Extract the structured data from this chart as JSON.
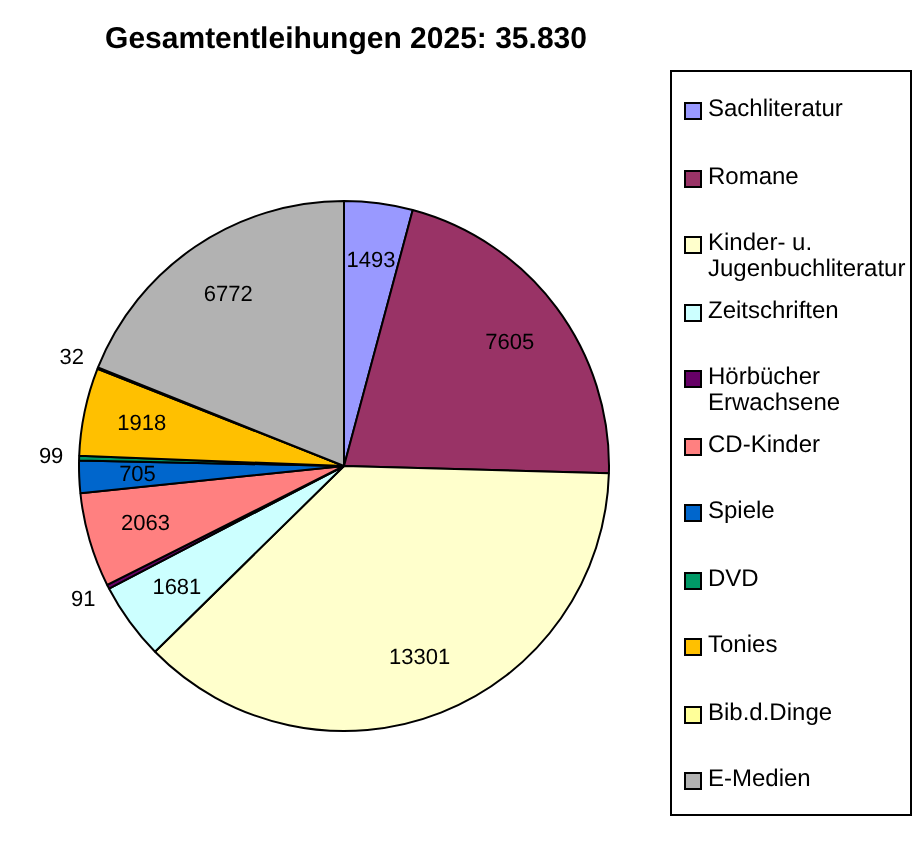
{
  "chart_data": {
    "type": "pie",
    "title": "Gesamtentleihungen 2025: 35.830",
    "categories": [
      "Sachliteratur",
      "Romane",
      "Kinder- u. Jugenbuchliteratur",
      "Zeitschriften",
      "Hörbücher Erwachsene",
      "CD-Kinder",
      "Spiele",
      "DVD",
      "Tonies",
      "Bib.d.Dinge",
      "E-Medien"
    ],
    "values": [
      1493,
      7605,
      13301,
      1681,
      91,
      2063,
      705,
      99,
      1918,
      32,
      6772
    ],
    "colors": [
      "#9999ff",
      "#993366",
      "#ffffcc",
      "#ccffff",
      "#660066",
      "#ff8080",
      "#0066cc",
      "#009966",
      "#ffc000",
      "#ffff99",
      "#b2b2b2"
    ],
    "data_labels": true,
    "legend": "right"
  }
}
